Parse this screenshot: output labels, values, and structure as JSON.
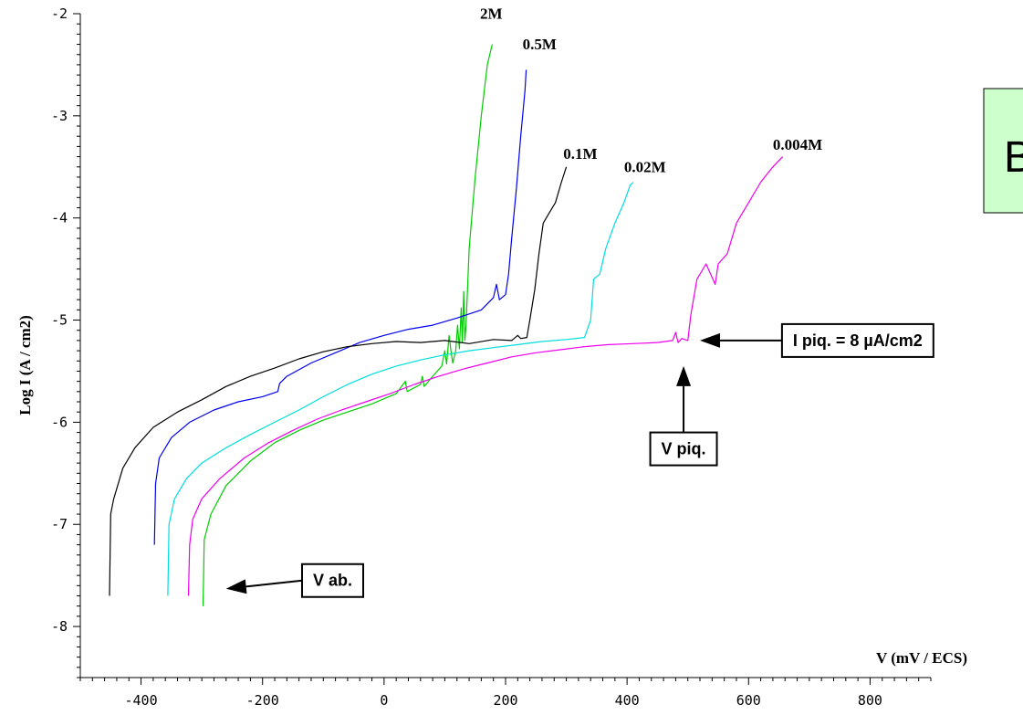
{
  "chart_data": {
    "type": "line",
    "xlabel": "V (mV / ECS)",
    "ylabel": "Log I (A / cm2)",
    "xlim": [
      -500,
      900
    ],
    "ylim": [
      -8.5,
      -2
    ],
    "x_ticks": [
      -400,
      -200,
      0,
      200,
      400,
      600,
      800
    ],
    "y_ticks": [
      -2,
      -3,
      -4,
      -5,
      -6,
      -7,
      -8
    ],
    "grid": false,
    "panel_letter": "B",
    "series": [
      {
        "name": "2M",
        "color": "#00cc00",
        "points": [
          [
            -298,
            -7.8
          ],
          [
            -296,
            -7.15
          ],
          [
            -285,
            -6.9
          ],
          [
            -260,
            -6.62
          ],
          [
            -220,
            -6.38
          ],
          [
            -180,
            -6.2
          ],
          [
            -140,
            -6.08
          ],
          [
            -100,
            -5.98
          ],
          [
            -60,
            -5.9
          ],
          [
            -20,
            -5.82
          ],
          [
            20,
            -5.72
          ],
          [
            35,
            -5.6
          ],
          [
            38,
            -5.7
          ],
          [
            60,
            -5.63
          ],
          [
            63,
            -5.55
          ],
          [
            66,
            -5.65
          ],
          [
            80,
            -5.55
          ],
          [
            95,
            -5.45
          ],
          [
            100,
            -5.3
          ],
          [
            103,
            -5.43
          ],
          [
            107,
            -5.15
          ],
          [
            110,
            -5.3
          ],
          [
            113,
            -5.42
          ],
          [
            118,
            -5.3
          ],
          [
            121,
            -5.05
          ],
          [
            124,
            -5.28
          ],
          [
            127,
            -4.88
          ],
          [
            129,
            -5.22
          ],
          [
            131,
            -4.72
          ],
          [
            133,
            -5.2
          ],
          [
            135,
            -5.05
          ],
          [
            140,
            -4.3
          ],
          [
            150,
            -3.6
          ],
          [
            160,
            -3.0
          ],
          [
            170,
            -2.5
          ],
          [
            178,
            -2.3
          ]
        ]
      },
      {
        "name": "0.5M",
        "color": "#0000ee",
        "points": [
          [
            -378,
            -7.2
          ],
          [
            -376,
            -6.6
          ],
          [
            -370,
            -6.35
          ],
          [
            -350,
            -6.15
          ],
          [
            -320,
            -6.0
          ],
          [
            -280,
            -5.88
          ],
          [
            -240,
            -5.8
          ],
          [
            -200,
            -5.75
          ],
          [
            -175,
            -5.7
          ],
          [
            -172,
            -5.62
          ],
          [
            -160,
            -5.55
          ],
          [
            -120,
            -5.42
          ],
          [
            -80,
            -5.32
          ],
          [
            -40,
            -5.22
          ],
          [
            0,
            -5.15
          ],
          [
            40,
            -5.09
          ],
          [
            80,
            -5.05
          ],
          [
            120,
            -4.98
          ],
          [
            160,
            -4.9
          ],
          [
            180,
            -4.78
          ],
          [
            185,
            -4.65
          ],
          [
            190,
            -4.8
          ],
          [
            200,
            -4.75
          ],
          [
            205,
            -4.55
          ],
          [
            210,
            -4.2
          ],
          [
            218,
            -3.7
          ],
          [
            225,
            -3.2
          ],
          [
            232,
            -2.75
          ],
          [
            234,
            -2.55
          ]
        ]
      },
      {
        "name": "0.1M",
        "color": "#000000",
        "points": [
          [
            -452,
            -7.7
          ],
          [
            -450,
            -6.9
          ],
          [
            -445,
            -6.75
          ],
          [
            -430,
            -6.45
          ],
          [
            -410,
            -6.25
          ],
          [
            -380,
            -6.05
          ],
          [
            -340,
            -5.9
          ],
          [
            -300,
            -5.78
          ],
          [
            -260,
            -5.65
          ],
          [
            -220,
            -5.55
          ],
          [
            -180,
            -5.47
          ],
          [
            -140,
            -5.38
          ],
          [
            -100,
            -5.31
          ],
          [
            -60,
            -5.26
          ],
          [
            -20,
            -5.23
          ],
          [
            20,
            -5.21
          ],
          [
            60,
            -5.22
          ],
          [
            100,
            -5.2
          ],
          [
            140,
            -5.23
          ],
          [
            180,
            -5.19
          ],
          [
            210,
            -5.2
          ],
          [
            220,
            -5.15
          ],
          [
            225,
            -5.18
          ],
          [
            235,
            -5.17
          ],
          [
            240,
            -5.0
          ],
          [
            248,
            -4.7
          ],
          [
            255,
            -4.35
          ],
          [
            262,
            -4.05
          ],
          [
            272,
            -3.95
          ],
          [
            282,
            -3.85
          ],
          [
            292,
            -3.65
          ],
          [
            300,
            -3.5
          ]
        ]
      },
      {
        "name": "0.02M",
        "color": "#00dddd",
        "points": [
          [
            -356,
            -7.7
          ],
          [
            -354,
            -7.0
          ],
          [
            -345,
            -6.75
          ],
          [
            -325,
            -6.55
          ],
          [
            -300,
            -6.4
          ],
          [
            -260,
            -6.25
          ],
          [
            -220,
            -6.12
          ],
          [
            -180,
            -6.0
          ],
          [
            -140,
            -5.88
          ],
          [
            -100,
            -5.75
          ],
          [
            -60,
            -5.63
          ],
          [
            -20,
            -5.53
          ],
          [
            20,
            -5.45
          ],
          [
            60,
            -5.39
          ],
          [
            100,
            -5.34
          ],
          [
            140,
            -5.3
          ],
          [
            180,
            -5.27
          ],
          [
            220,
            -5.24
          ],
          [
            260,
            -5.21
          ],
          [
            300,
            -5.19
          ],
          [
            330,
            -5.17
          ],
          [
            340,
            -5.0
          ],
          [
            345,
            -4.6
          ],
          [
            355,
            -4.55
          ],
          [
            365,
            -4.3
          ],
          [
            380,
            -4.05
          ],
          [
            395,
            -3.85
          ],
          [
            405,
            -3.68
          ],
          [
            410,
            -3.65
          ]
        ]
      },
      {
        "name": "0.004M",
        "color": "#ee00ee",
        "points": [
          [
            -322,
            -7.7
          ],
          [
            -320,
            -7.2
          ],
          [
            -315,
            -6.95
          ],
          [
            -300,
            -6.75
          ],
          [
            -270,
            -6.55
          ],
          [
            -230,
            -6.35
          ],
          [
            -190,
            -6.2
          ],
          [
            -150,
            -6.08
          ],
          [
            -110,
            -5.97
          ],
          [
            -70,
            -5.88
          ],
          [
            -30,
            -5.8
          ],
          [
            10,
            -5.72
          ],
          [
            50,
            -5.63
          ],
          [
            90,
            -5.55
          ],
          [
            130,
            -5.48
          ],
          [
            170,
            -5.42
          ],
          [
            210,
            -5.36
          ],
          [
            250,
            -5.32
          ],
          [
            290,
            -5.29
          ],
          [
            330,
            -5.26
          ],
          [
            370,
            -5.24
          ],
          [
            410,
            -5.23
          ],
          [
            450,
            -5.22
          ],
          [
            475,
            -5.2
          ],
          [
            480,
            -5.12
          ],
          [
            484,
            -5.22
          ],
          [
            490,
            -5.18
          ],
          [
            500,
            -5.2
          ],
          [
            505,
            -4.95
          ],
          [
            515,
            -4.6
          ],
          [
            530,
            -4.45
          ],
          [
            545,
            -4.65
          ],
          [
            550,
            -4.45
          ],
          [
            565,
            -4.35
          ],
          [
            580,
            -4.05
          ],
          [
            600,
            -3.85
          ],
          [
            620,
            -3.65
          ],
          [
            640,
            -3.5
          ],
          [
            656,
            -3.4
          ]
        ]
      }
    ],
    "series_labels": [
      {
        "text": "2M",
        "x": 158,
        "y": -2.05
      },
      {
        "text": "0.5M",
        "x": 228,
        "y": -2.35
      },
      {
        "text": "0.1M",
        "x": 295,
        "y": -3.42
      },
      {
        "text": "0.02M",
        "x": 395,
        "y": -3.55
      },
      {
        "text": "0.004M",
        "x": 640,
        "y": -3.33
      }
    ],
    "annotations": [
      {
        "text": "I piq. = 8 µA/cm2",
        "x_from": 655,
        "y_from": -5.2,
        "x_to": 520,
        "y_to": -5.2
      },
      {
        "text": "V piq.",
        "x_from": 493,
        "y_from": -6.1,
        "x_to": 493,
        "y_to": -5.45
      },
      {
        "text": "V ab.",
        "x_from": -135,
        "y_from": -7.55,
        "x_to": -260,
        "y_to": -7.63
      }
    ]
  }
}
